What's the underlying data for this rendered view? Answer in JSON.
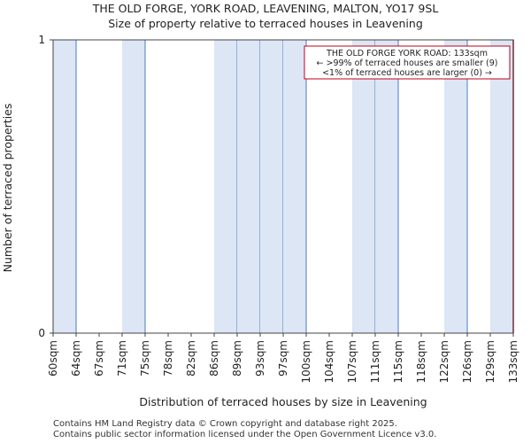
{
  "chart_data": {
    "type": "bar",
    "title": "THE OLD FORGE, YORK ROAD, LEAVENING, MALTON, YO17 9SL",
    "subtitle": "Size of property relative to terraced houses in Leavening",
    "xlabel": "Distribution of terraced houses by size in Leavening",
    "ylabel": "Number of terraced properties",
    "categories": [
      "60sqm",
      "64sqm",
      "67sqm",
      "71sqm",
      "75sqm",
      "78sqm",
      "82sqm",
      "86sqm",
      "89sqm",
      "93sqm",
      "97sqm",
      "100sqm",
      "104sqm",
      "107sqm",
      "111sqm",
      "115sqm",
      "118sqm",
      "122sqm",
      "126sqm",
      "129sqm",
      "133sqm"
    ],
    "values": [
      1,
      0,
      0,
      1,
      0,
      0,
      0,
      1,
      1,
      1,
      1,
      0,
      0,
      1,
      1,
      0,
      0,
      1,
      0,
      1,
      0
    ],
    "ylim": [
      0,
      1
    ],
    "yticks": [
      "0",
      "1"
    ],
    "bar_color": "#dce6f4",
    "bar_edge_color": "#4a7bbf",
    "marker": {
      "category": "133sqm",
      "color": "#c0001a",
      "annotation": [
        "THE OLD FORGE YORK ROAD: 133sqm",
        "← >99% of terraced houses are smaller (9)",
        "<1% of terraced houses are larger (0) →"
      ]
    }
  },
  "footer": {
    "line1": "Contains HM Land Registry data © Crown copyright and database right 2025.",
    "line2": "Contains public sector information licensed under the Open Government Licence v3.0."
  }
}
